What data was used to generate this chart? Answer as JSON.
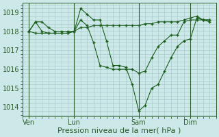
{
  "bg_color": "#cce8e8",
  "grid_color": "#aacccc",
  "line_color": "#1a5c1a",
  "xlabel": "Pression niveau de la mer( hPa )",
  "xlabel_fontsize": 8,
  "ylim": [
    1013.5,
    1019.5
  ],
  "yticks": [
    1014,
    1015,
    1016,
    1017,
    1018,
    1019
  ],
  "xlim": [
    -0.5,
    14.5
  ],
  "vlines_x": [
    0.0,
    3.5,
    8.5,
    12.5
  ],
  "vline_labels": [
    "Ven",
    "Lun",
    "Sam",
    "Dim"
  ],
  "series": [
    {
      "x": [
        0.0,
        0.5,
        1.0,
        1.5,
        2.0,
        2.5,
        3.0,
        3.5,
        4.0,
        4.5,
        5.0,
        5.5,
        6.0,
        6.5,
        7.0,
        7.5,
        8.0,
        8.5,
        9.0,
        9.5,
        10.0,
        10.5,
        11.0,
        11.5,
        12.0,
        12.5,
        13.0,
        13.5,
        14.0
      ],
      "y": [
        1018.0,
        1018.5,
        1018.5,
        1018.2,
        1018.0,
        1018.0,
        1018.0,
        1018.0,
        1018.2,
        1018.2,
        1018.3,
        1018.3,
        1018.3,
        1018.3,
        1018.3,
        1018.3,
        1018.3,
        1018.3,
        1018.4,
        1018.4,
        1018.5,
        1018.5,
        1018.5,
        1018.5,
        1018.6,
        1018.7,
        1018.8,
        1018.6,
        1018.6
      ]
    },
    {
      "x": [
        0.0,
        0.5,
        1.0,
        1.5,
        2.0,
        2.5,
        3.0,
        3.5,
        4.0,
        4.5,
        5.0,
        5.5,
        6.0,
        6.5,
        7.0,
        7.5,
        8.0,
        8.5,
        9.0,
        9.5,
        10.0,
        10.5,
        11.0,
        11.5,
        12.0,
        12.5,
        13.0,
        13.5,
        14.0
      ],
      "y": [
        1018.0,
        1018.5,
        1018.0,
        1017.9,
        1017.9,
        1017.9,
        1017.9,
        1018.0,
        1019.2,
        1018.9,
        1018.6,
        1018.6,
        1017.5,
        1016.2,
        1016.2,
        1016.1,
        1015.2,
        1013.8,
        1014.1,
        1015.0,
        1015.2,
        1015.9,
        1016.6,
        1017.2,
        1017.5,
        1017.6,
        1018.7,
        1018.6,
        1018.6
      ]
    },
    {
      "x": [
        0.0,
        0.5,
        1.0,
        1.5,
        2.0,
        2.5,
        3.0,
        3.5,
        4.0,
        4.5,
        5.0,
        5.5,
        6.0,
        6.5,
        7.0,
        7.5,
        8.0,
        8.5,
        9.0,
        9.5,
        10.0,
        10.5,
        11.0,
        11.5,
        12.0,
        12.5,
        13.0,
        13.5,
        14.0
      ],
      "y": [
        1018.0,
        1017.9,
        1017.9,
        1017.9,
        1017.9,
        1017.9,
        1017.9,
        1018.0,
        1018.6,
        1018.3,
        1017.4,
        1016.2,
        1016.1,
        1016.0,
        1016.0,
        1016.0,
        1016.0,
        1015.8,
        1015.9,
        1016.6,
        1017.2,
        1017.5,
        1017.8,
        1017.8,
        1018.5,
        1018.6,
        1018.6,
        1018.6,
        1018.5
      ]
    }
  ]
}
